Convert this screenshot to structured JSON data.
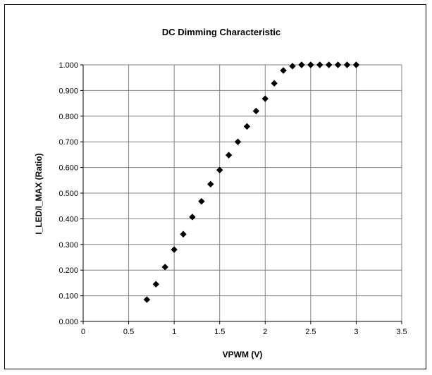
{
  "chart_data": {
    "type": "scatter",
    "title": "DC Dimming Characteristic",
    "xlabel": "VPWM (V)",
    "ylabel": "I_LED/I_MAX (Ratio)",
    "xlim": [
      0,
      3.5
    ],
    "ylim": [
      0,
      1.0
    ],
    "x_ticks": [
      "0",
      "0.5",
      "1",
      "1.5",
      "2",
      "2.5",
      "3",
      "3.5"
    ],
    "y_ticks": [
      "0.000",
      "0.100",
      "0.200",
      "0.300",
      "0.400",
      "0.500",
      "0.600",
      "0.700",
      "0.800",
      "0.900",
      "1.000"
    ],
    "grid": true,
    "legend": "none",
    "marker_color": "#000000",
    "marker": "diamond",
    "series": [
      {
        "x": [
          0.7,
          0.8,
          0.9,
          1.0,
          1.1,
          1.2,
          1.3,
          1.4,
          1.5,
          1.6,
          1.7,
          1.8,
          1.9,
          2.0,
          2.1,
          2.2,
          2.3,
          2.4,
          2.5,
          2.6,
          2.7,
          2.8,
          2.9,
          3.0
        ],
        "y": [
          0.085,
          0.145,
          0.212,
          0.28,
          0.34,
          0.407,
          0.468,
          0.535,
          0.59,
          0.648,
          0.7,
          0.76,
          0.82,
          0.868,
          0.928,
          0.978,
          0.995,
          1.0,
          1.0,
          1.0,
          1.0,
          1.0,
          1.0,
          1.0
        ]
      }
    ]
  }
}
